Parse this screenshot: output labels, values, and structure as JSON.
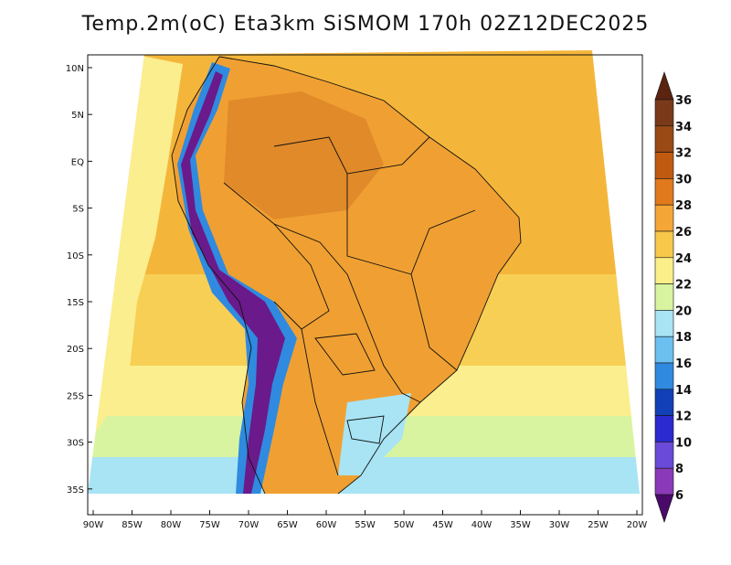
{
  "title": "Temp.2m(oC) Eta3km SiSMOM 170h 02Z12DEC2025",
  "lat_labels": [
    "10N",
    "5N",
    "EQ",
    "5S",
    "10S",
    "15S",
    "20S",
    "25S",
    "30S",
    "35S"
  ],
  "lon_labels": [
    "90W",
    "85W",
    "80W",
    "75W",
    "70W",
    "65W",
    "60W",
    "55W",
    "50W",
    "45W",
    "40W",
    "35W",
    "30W",
    "25W",
    "20W"
  ],
  "colorbar": {
    "labels": [
      "36",
      "34",
      "32",
      "30",
      "28",
      "26",
      "24",
      "22",
      "20",
      "18",
      "16",
      "14",
      "12",
      "10",
      "8",
      "6"
    ],
    "colors": [
      "#7a3a1a",
      "#9a4a14",
      "#c05a10",
      "#e07a1c",
      "#f4a636",
      "#f7c84a",
      "#fbef8a",
      "#d8f4a0",
      "#a8e4f4",
      "#6cc0ef",
      "#2f8ae0",
      "#1240b8",
      "#2a2ad0",
      "#6a4ad8",
      "#8a3ab8",
      "#6a1a8a"
    ],
    "top_color": "#5a2410",
    "bottom_color": "#4a0a6a"
  },
  "colors": {
    "ocean_warm": "#f4b63a",
    "ocean_mid": "#f7cf55",
    "ocean_cool": "#fbee8e",
    "south_green": "#d8f4a0",
    "south_blue": "#a8e4f4",
    "land": "#f0a032",
    "hot_land": "#e08a2a",
    "andes": "#6a1a8a",
    "andes_edge": "#2f8ae0"
  }
}
